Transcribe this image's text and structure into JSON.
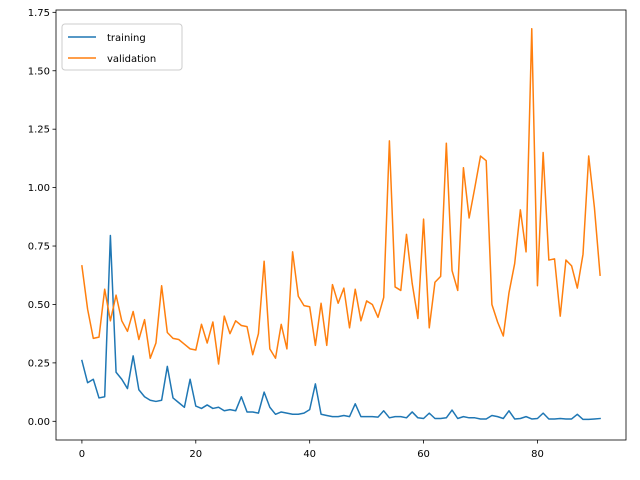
{
  "chart_data": {
    "type": "line",
    "title": "",
    "xlabel": "",
    "ylabel": "",
    "xlim": [
      -4.55,
      95.55
    ],
    "ylim": [
      -0.08,
      1.76
    ],
    "grid": false,
    "legend_position": "top-left",
    "x_ticks": [
      0,
      20,
      40,
      60,
      80
    ],
    "y_ticks": [
      0.0,
      0.25,
      0.5,
      0.75,
      1.0,
      1.25,
      1.5,
      1.75
    ],
    "x_tick_labels": [
      "0",
      "20",
      "40",
      "60",
      "80"
    ],
    "y_tick_labels": [
      "0.00",
      "0.25",
      "0.50",
      "0.75",
      "1.00",
      "1.25",
      "1.50",
      "1.75"
    ],
    "series": [
      {
        "name": "training",
        "color": "#1f77b4",
        "values": [
          0.26,
          0.165,
          0.18,
          0.1,
          0.105,
          0.795,
          0.21,
          0.18,
          0.14,
          0.28,
          0.135,
          0.105,
          0.09,
          0.085,
          0.09,
          0.235,
          0.1,
          0.08,
          0.06,
          0.18,
          0.065,
          0.055,
          0.07,
          0.055,
          0.06,
          0.045,
          0.05,
          0.045,
          0.105,
          0.04,
          0.04,
          0.035,
          0.125,
          0.06,
          0.03,
          0.04,
          0.035,
          0.03,
          0.03,
          0.035,
          0.05,
          0.16,
          0.03,
          0.025,
          0.02,
          0.02,
          0.025,
          0.02,
          0.075,
          0.02,
          0.02,
          0.02,
          0.018,
          0.045,
          0.015,
          0.02,
          0.02,
          0.015,
          0.04,
          0.015,
          0.012,
          0.035,
          0.012,
          0.012,
          0.015,
          0.048,
          0.012,
          0.02,
          0.015,
          0.015,
          0.01,
          0.01,
          0.025,
          0.02,
          0.012,
          0.045,
          0.01,
          0.012,
          0.02,
          0.01,
          0.012,
          0.035,
          0.01,
          0.01,
          0.012,
          0.01,
          0.01,
          0.03,
          0.008,
          0.008,
          0.01,
          0.012
        ]
      },
      {
        "name": "validation",
        "color": "#ff7f0e",
        "values": [
          0.665,
          0.48,
          0.355,
          0.36,
          0.565,
          0.43,
          0.54,
          0.43,
          0.385,
          0.47,
          0.35,
          0.435,
          0.27,
          0.335,
          0.58,
          0.38,
          0.355,
          0.35,
          0.33,
          0.31,
          0.305,
          0.415,
          0.335,
          0.425,
          0.245,
          0.45,
          0.375,
          0.43,
          0.41,
          0.405,
          0.285,
          0.375,
          0.685,
          0.31,
          0.27,
          0.415,
          0.31,
          0.725,
          0.535,
          0.495,
          0.49,
          0.325,
          0.505,
          0.325,
          0.585,
          0.505,
          0.57,
          0.4,
          0.565,
          0.43,
          0.515,
          0.5,
          0.445,
          0.53,
          1.2,
          0.575,
          0.56,
          0.8,
          0.59,
          0.44,
          0.865,
          0.4,
          0.595,
          0.62,
          1.19,
          0.645,
          0.56,
          1.085,
          0.87,
          1.0,
          1.135,
          1.115,
          0.5,
          0.425,
          0.365,
          0.55,
          0.675,
          0.905,
          0.725,
          1.68,
          0.58,
          1.15,
          0.69,
          0.695,
          0.45,
          0.69,
          0.665,
          0.57,
          0.715,
          1.135,
          0.915,
          0.625
        ]
      }
    ]
  }
}
